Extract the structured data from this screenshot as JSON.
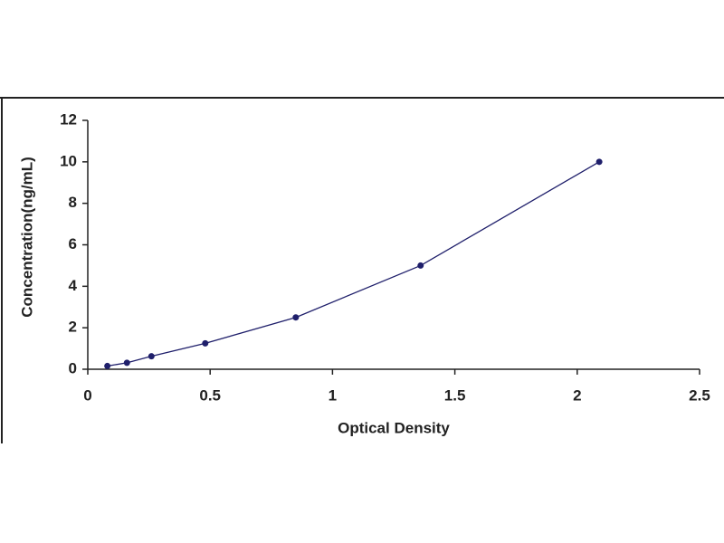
{
  "chart_data": {
    "type": "line",
    "x_label": "Optical Density",
    "y_label": "Concentration(ng/mL)",
    "series": [
      {
        "x": [
          0.08,
          0.16,
          0.26,
          0.48,
          0.85,
          1.36,
          2.09
        ],
        "values": [
          0.156,
          0.312,
          0.625,
          1.25,
          2.5,
          5,
          10
        ],
        "color": "#1f1f6b"
      }
    ],
    "xlim": [
      0,
      2.5
    ],
    "xticks": [
      0,
      0.5,
      1,
      1.5,
      2,
      2.5
    ],
    "ylim": [
      0,
      12
    ],
    "yticks": [
      0,
      2,
      4,
      6,
      8,
      10,
      12
    ],
    "grid": false
  }
}
